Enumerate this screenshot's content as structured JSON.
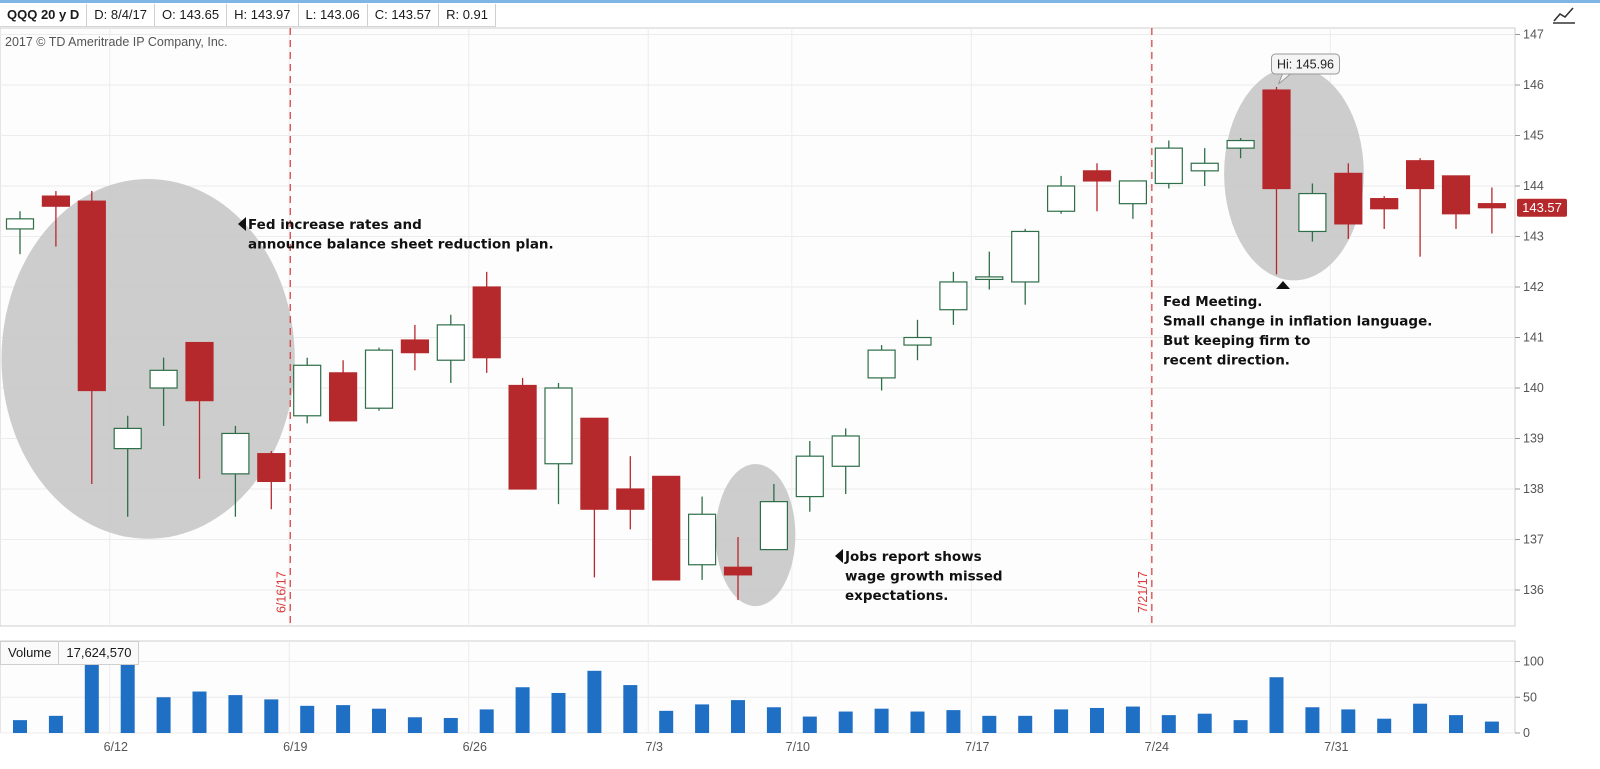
{
  "header": {
    "symbol": "QQQ 20 y D",
    "date": "D:  8/4/17",
    "open": "O:  143.65",
    "high": "H:  143.97",
    "low": "L:  143.06",
    "close": "C:  143.57",
    "range": "R:  0.91"
  },
  "copyright": "2017 © TD Ameritrade IP Company, Inc.",
  "chart_data": [
    {
      "type": "candlestick",
      "y_axis_side": "right",
      "ylim": [
        135.3,
        147.2
      ],
      "yticks": [
        "136",
        "137",
        "138",
        "139",
        "140",
        "141",
        "142",
        "143",
        "144",
        "145",
        "146",
        "147"
      ],
      "xticks": [
        "6/12",
        "6/19",
        "6/26",
        "7/3",
        "7/10",
        "7/17",
        "7/24",
        "7/31"
      ],
      "grid": true,
      "colors": {
        "up": "#2e6e48",
        "down": "#b5292c",
        "event_line": "#d93a3a",
        "highlight": "#c8c8c8"
      },
      "candles": [
        {
          "date": "6/7",
          "o": 143.15,
          "h": 143.5,
          "l": 142.65,
          "c": 143.35
        },
        {
          "date": "6/8",
          "o": 143.8,
          "h": 143.9,
          "l": 142.8,
          "c": 143.6
        },
        {
          "date": "6/9",
          "o": 143.7,
          "h": 143.9,
          "l": 138.1,
          "c": 139.95
        },
        {
          "date": "6/12",
          "o": 138.8,
          "h": 139.45,
          "l": 137.45,
          "c": 139.2
        },
        {
          "date": "6/13",
          "o": 140.0,
          "h": 140.6,
          "l": 139.25,
          "c": 140.35
        },
        {
          "date": "6/14",
          "o": 140.9,
          "h": 140.9,
          "l": 138.2,
          "c": 139.75
        },
        {
          "date": "6/15",
          "o": 138.3,
          "h": 139.25,
          "l": 137.45,
          "c": 139.1
        },
        {
          "date": "6/16",
          "o": 138.7,
          "h": 138.75,
          "l": 137.6,
          "c": 138.15
        },
        {
          "date": "6/19",
          "o": 139.45,
          "h": 140.6,
          "l": 139.3,
          "c": 140.45
        },
        {
          "date": "6/20",
          "o": 140.3,
          "h": 140.55,
          "l": 139.35,
          "c": 139.35
        },
        {
          "date": "6/21",
          "o": 139.6,
          "h": 140.8,
          "l": 139.55,
          "c": 140.75
        },
        {
          "date": "6/22",
          "o": 140.95,
          "h": 141.25,
          "l": 140.35,
          "c": 140.7
        },
        {
          "date": "6/23",
          "o": 140.55,
          "h": 141.45,
          "l": 140.1,
          "c": 141.25
        },
        {
          "date": "6/26",
          "o": 142.0,
          "h": 142.3,
          "l": 140.3,
          "c": 140.6
        },
        {
          "date": "6/27",
          "o": 140.05,
          "h": 140.2,
          "l": 138.0,
          "c": 138.0
        },
        {
          "date": "6/28",
          "o": 138.5,
          "h": 140.1,
          "l": 137.7,
          "c": 140.0
        },
        {
          "date": "6/29",
          "o": 139.4,
          "h": 139.4,
          "l": 136.25,
          "c": 137.6
        },
        {
          "date": "6/30",
          "o": 138.0,
          "h": 138.65,
          "l": 137.2,
          "c": 137.6
        },
        {
          "date": "7/3",
          "o": 138.25,
          "h": 138.25,
          "l": 136.2,
          "c": 136.2
        },
        {
          "date": "7/5",
          "o": 136.5,
          "h": 137.85,
          "l": 136.2,
          "c": 137.5
        },
        {
          "date": "7/6",
          "o": 136.45,
          "h": 137.05,
          "l": 135.8,
          "c": 136.3
        },
        {
          "date": "7/7",
          "o": 136.8,
          "h": 138.1,
          "l": 136.8,
          "c": 137.75
        },
        {
          "date": "7/10",
          "o": 137.85,
          "h": 138.95,
          "l": 137.55,
          "c": 138.65
        },
        {
          "date": "7/11",
          "o": 138.45,
          "h": 139.2,
          "l": 137.9,
          "c": 139.05
        },
        {
          "date": "7/12",
          "o": 140.2,
          "h": 140.85,
          "l": 139.95,
          "c": 140.75
        },
        {
          "date": "7/13",
          "o": 140.85,
          "h": 141.35,
          "l": 140.55,
          "c": 141.0
        },
        {
          "date": "7/14",
          "o": 141.55,
          "h": 142.3,
          "l": 141.25,
          "c": 142.1
        },
        {
          "date": "7/17",
          "o": 142.15,
          "h": 142.7,
          "l": 141.95,
          "c": 142.2
        },
        {
          "date": "7/18",
          "o": 142.1,
          "h": 143.15,
          "l": 141.65,
          "c": 143.1
        },
        {
          "date": "7/19",
          "o": 143.5,
          "h": 144.2,
          "l": 143.45,
          "c": 144.0
        },
        {
          "date": "7/20",
          "o": 144.3,
          "h": 144.45,
          "l": 143.5,
          "c": 144.1
        },
        {
          "date": "7/21",
          "o": 143.65,
          "h": 144.1,
          "l": 143.35,
          "c": 144.1
        },
        {
          "date": "7/24",
          "o": 144.05,
          "h": 144.9,
          "l": 143.95,
          "c": 144.75
        },
        {
          "date": "7/25",
          "o": 144.3,
          "h": 144.75,
          "l": 144.0,
          "c": 144.45
        },
        {
          "date": "7/26",
          "o": 144.75,
          "h": 144.95,
          "l": 144.55,
          "c": 144.9
        },
        {
          "date": "7/27",
          "o": 145.9,
          "h": 145.96,
          "l": 142.25,
          "c": 143.95
        },
        {
          "date": "7/28",
          "o": 143.1,
          "h": 144.05,
          "l": 142.9,
          "c": 143.85
        },
        {
          "date": "7/31",
          "o": 144.25,
          "h": 144.45,
          "l": 142.95,
          "c": 143.25
        },
        {
          "date": "8/1",
          "o": 143.75,
          "h": 143.8,
          "l": 143.15,
          "c": 143.55
        },
        {
          "date": "8/2",
          "o": 144.5,
          "h": 144.55,
          "l": 142.6,
          "c": 143.95
        },
        {
          "date": "8/3",
          "o": 144.2,
          "h": 144.2,
          "l": 143.15,
          "c": 143.45
        },
        {
          "date": "8/4",
          "o": 143.65,
          "h": 143.97,
          "l": 143.06,
          "c": 143.57
        }
      ],
      "price_marker": "143.57",
      "events": [
        {
          "label": "6/16/17",
          "date": "6/16"
        },
        {
          "label": "7/21/17",
          "date": "7/21"
        }
      ],
      "callout": "Hi: 145.96",
      "annotations": [
        {
          "id": "fed-june",
          "lines": [
            "Fed increase rates and",
            "announce balance sheet reduction plan."
          ]
        },
        {
          "id": "jobs",
          "lines": [
            "Jobs report shows",
            "wage growth missed",
            "expectations."
          ]
        },
        {
          "id": "fed-july",
          "lines": [
            "Fed Meeting.",
            "Small change in inflation language.",
            "But keeping firm to",
            " recent direction."
          ]
        }
      ],
      "highlights": [
        {
          "from_date": "6/7",
          "to_date": "6/16"
        },
        {
          "from_date": "7/6",
          "to_date": "7/7"
        },
        {
          "from_date": "7/26",
          "to_date": "7/31"
        }
      ]
    },
    {
      "type": "bar",
      "title": "Volume",
      "current_value": "17,624,570",
      "ylim": [
        0,
        120
      ],
      "yticks": [
        "0",
        "50",
        "100"
      ],
      "color": "#1f6fc5",
      "values": [
        18,
        24,
        108,
        103,
        50,
        58,
        53,
        47,
        38,
        39,
        34,
        22,
        21,
        33,
        64,
        56,
        87,
        67,
        31,
        40,
        46,
        36,
        23,
        30,
        34,
        30,
        32,
        24,
        24,
        33,
        35,
        37,
        25,
        27,
        18,
        78,
        36,
        33,
        20,
        41,
        25,
        16
      ]
    }
  ]
}
